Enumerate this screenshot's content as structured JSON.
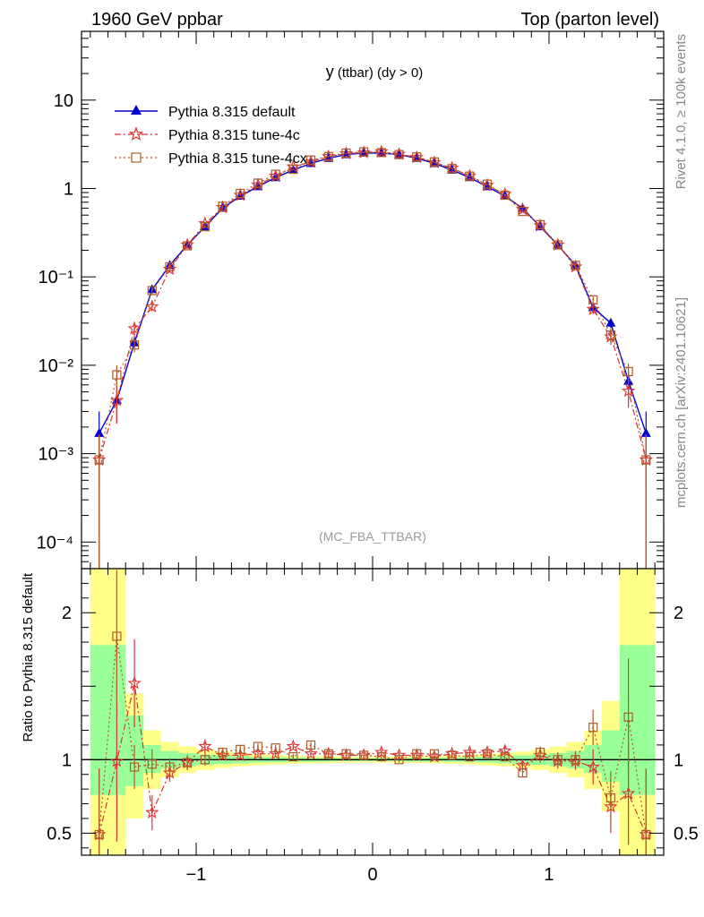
{
  "header": {
    "left": "1960 GeV ppbar",
    "right": "Top (parton level)"
  },
  "side_notes": {
    "rivet": "Rivet 4.1.0, ≥ 100k events",
    "mcplots": "mcplots.cern.ch [arXiv:2401.10621]"
  },
  "chart_data": {
    "type": "line",
    "title": "y (ttbar) (dy > 0)",
    "title_main": "y",
    "title_rest": " (ttbar) (dy > 0)",
    "watermark": "(MC_FBA_TTBAR)",
    "x": [
      -1.55,
      -1.45,
      -1.35,
      -1.25,
      -1.15,
      -1.05,
      -0.95,
      -0.85,
      -0.75,
      -0.65,
      -0.55,
      -0.45,
      -0.35,
      -0.25,
      -0.15,
      -0.05,
      0.05,
      0.15,
      0.25,
      0.35,
      0.45,
      0.55,
      0.65,
      0.75,
      0.85,
      0.95,
      1.05,
      1.15,
      1.25,
      1.35,
      1.45,
      1.55
    ],
    "xlim": [
      -1.65,
      1.65
    ],
    "ylim": [
      5e-05,
      60
    ],
    "xticks": [
      "−1",
      "0",
      "1"
    ],
    "xtick_values": [
      -1,
      0,
      1
    ],
    "yticks": [
      "10⁻⁴",
      "10⁻³",
      "10⁻²",
      "10⁻¹",
      "1",
      "10"
    ],
    "ytick_values": [
      0.0001,
      0.001,
      0.01,
      0.1,
      1,
      10
    ],
    "series": [
      {
        "name": "Pythia 8.315 default",
        "color": "#0000cc",
        "dash": "",
        "marker": "triangle",
        "values": [
          0.0017,
          0.004,
          0.018,
          0.072,
          0.135,
          0.23,
          0.37,
          0.6,
          0.82,
          1.05,
          1.33,
          1.62,
          1.92,
          2.2,
          2.42,
          2.52,
          2.52,
          2.42,
          2.2,
          1.92,
          1.62,
          1.33,
          1.05,
          0.82,
          0.6,
          0.37,
          0.23,
          0.135,
          0.045,
          0.03,
          0.0066,
          0.0017
        ],
        "errors": [
          0.0013,
          0.0018,
          0.003,
          0.006,
          0.008,
          0.01,
          0.013,
          0.016,
          0.018,
          0.02,
          0.023,
          0.025,
          0.027,
          0.029,
          0.03,
          0.031,
          0.031,
          0.03,
          0.029,
          0.027,
          0.025,
          0.023,
          0.02,
          0.018,
          0.016,
          0.013,
          0.01,
          0.008,
          0.004,
          0.0035,
          0.0015,
          0.0013
        ]
      },
      {
        "name": "Pythia 8.315 tune-4c",
        "color": "#dd3333",
        "dash": "7,3,2,3",
        "marker": "star",
        "values": [
          0.00085,
          0.004,
          0.026,
          0.046,
          0.122,
          0.23,
          0.4,
          0.61,
          0.84,
          1.1,
          1.38,
          1.76,
          2.0,
          2.3,
          2.48,
          2.55,
          2.6,
          2.45,
          2.25,
          1.97,
          1.7,
          1.39,
          1.09,
          0.86,
          0.58,
          0.38,
          0.23,
          0.13,
          0.043,
          0.021,
          0.0051,
          0.00085
        ],
        "errors": [
          0.0008,
          0.0018,
          0.005,
          0.005,
          0.007,
          0.01,
          0.013,
          0.016,
          0.018,
          0.02,
          0.023,
          0.025,
          0.027,
          0.029,
          0.03,
          0.031,
          0.031,
          0.03,
          0.029,
          0.027,
          0.025,
          0.023,
          0.02,
          0.018,
          0.016,
          0.013,
          0.01,
          0.008,
          0.005,
          0.004,
          0.0018,
          0.0008
        ]
      },
      {
        "name": "Pythia 8.315 tune-4cx",
        "color": "#b05a28",
        "dash": "2,3",
        "marker": "square",
        "values": [
          0.00085,
          0.0078,
          0.017,
          0.07,
          0.13,
          0.225,
          0.37,
          0.63,
          0.88,
          1.15,
          1.45,
          1.65,
          2.1,
          2.3,
          2.52,
          2.6,
          2.55,
          2.42,
          2.28,
          2.0,
          1.68,
          1.38,
          1.12,
          0.84,
          0.55,
          0.39,
          0.23,
          0.135,
          0.055,
          0.022,
          0.0085,
          0.00085
        ],
        "errors": [
          0.0008,
          0.0022,
          0.003,
          0.006,
          0.008,
          0.01,
          0.013,
          0.016,
          0.018,
          0.02,
          0.023,
          0.025,
          0.027,
          0.029,
          0.03,
          0.031,
          0.031,
          0.03,
          0.029,
          0.027,
          0.025,
          0.023,
          0.02,
          0.018,
          0.016,
          0.013,
          0.01,
          0.008,
          0.005,
          0.004,
          0.002,
          0.0008
        ]
      }
    ],
    "ratio": {
      "ylabel": "Ratio to Pythia 8.315 default",
      "ylim": [
        0.35,
        2.3
      ],
      "yticks": [
        "0.5",
        "1",
        "2"
      ],
      "ytick_values": [
        0.5,
        1,
        2
      ],
      "band_inner": [
        0.76,
        0.76,
        0.82,
        0.91,
        0.94,
        0.955,
        0.965,
        0.97,
        0.975,
        0.98,
        0.983,
        0.985,
        0.987,
        0.988,
        0.99,
        0.99,
        0.99,
        0.99,
        0.988,
        0.987,
        0.985,
        0.983,
        0.98,
        0.975,
        0.97,
        0.965,
        0.955,
        0.94,
        0.91,
        0.85,
        0.76,
        0.76
      ],
      "band_outer": [
        0.35,
        0.35,
        0.6,
        0.8,
        0.88,
        0.91,
        0.93,
        0.945,
        0.955,
        0.962,
        0.968,
        0.972,
        0.975,
        0.977,
        0.979,
        0.98,
        0.98,
        0.979,
        0.977,
        0.975,
        0.972,
        0.968,
        0.962,
        0.955,
        0.945,
        0.93,
        0.91,
        0.88,
        0.8,
        0.65,
        0.35,
        0.35
      ],
      "band_inner_hi": [
        1.78,
        1.78,
        1.3,
        1.1,
        1.06,
        1.045,
        1.035,
        1.03,
        1.025,
        1.02,
        1.017,
        1.015,
        1.013,
        1.012,
        1.01,
        1.01,
        1.01,
        1.01,
        1.012,
        1.013,
        1.015,
        1.017,
        1.02,
        1.025,
        1.03,
        1.035,
        1.045,
        1.06,
        1.1,
        1.2,
        1.78,
        1.78
      ],
      "band_outer_hi": [
        2.3,
        2.3,
        1.45,
        1.2,
        1.12,
        1.09,
        1.07,
        1.055,
        1.045,
        1.038,
        1.032,
        1.028,
        1.025,
        1.023,
        1.021,
        1.02,
        1.02,
        1.021,
        1.023,
        1.025,
        1.028,
        1.032,
        1.038,
        1.045,
        1.055,
        1.07,
        1.09,
        1.12,
        1.2,
        1.4,
        2.3,
        2.3
      ],
      "series": [
        {
          "name": "Pythia 8.315 tune-4c",
          "values": [
            0.49,
            0.99,
            1.52,
            0.64,
            0.91,
            0.98,
            1.09,
            1.03,
            1.03,
            1.04,
            1.04,
            1.09,
            1.04,
            1.04,
            1.03,
            1.03,
            1.05,
            1.03,
            1.03,
            1.02,
            1.04,
            1.05,
            1.05,
            1.06,
            0.96,
            1.03,
            0.99,
            0.99,
            0.95,
            0.68,
            0.77,
            0.49
          ],
          "errors": [
            0.45,
            0.55,
            0.3,
            0.12,
            0.06,
            0.05,
            0.05,
            0.03,
            0.03,
            0.02,
            0.02,
            0.02,
            0.02,
            0.02,
            0.02,
            0.02,
            0.02,
            0.02,
            0.02,
            0.02,
            0.02,
            0.02,
            0.02,
            0.03,
            0.03,
            0.05,
            0.05,
            0.06,
            0.12,
            0.18,
            0.35,
            0.45
          ]
        },
        {
          "name": "Pythia 8.315 tune-4cx",
          "values": [
            0.49,
            1.84,
            0.95,
            0.97,
            0.95,
            0.98,
            1.0,
            1.05,
            1.07,
            1.09,
            1.08,
            1.02,
            1.1,
            1.04,
            1.04,
            1.03,
            1.02,
            1.0,
            1.04,
            1.04,
            1.03,
            1.02,
            1.04,
            1.02,
            0.91,
            1.05,
            1.0,
            1.0,
            1.22,
            0.74,
            1.29,
            0.49
          ],
          "errors": [
            0.45,
            0.45,
            0.15,
            0.1,
            0.06,
            0.05,
            0.04,
            0.03,
            0.03,
            0.02,
            0.02,
            0.02,
            0.02,
            0.02,
            0.02,
            0.02,
            0.02,
            0.02,
            0.02,
            0.02,
            0.02,
            0.02,
            0.02,
            0.03,
            0.03,
            0.04,
            0.05,
            0.06,
            0.12,
            0.18,
            0.4,
            0.45
          ]
        }
      ]
    }
  }
}
